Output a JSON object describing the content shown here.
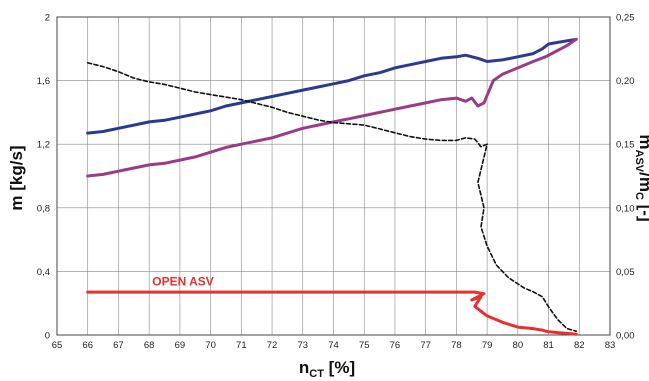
{
  "chart_data": {
    "type": "line",
    "xlabel": "n",
    "xlabel_sub": "CT",
    "xlabel_unit": " [%]",
    "ylabel": "m [kg/s]",
    "y2label": "m",
    "y2label_sub1": "ASV",
    "y2label_mid": "/m",
    "y2label_sub2": "C",
    "y2label_unit": " [-]",
    "xlim": [
      65,
      83
    ],
    "ylim": [
      0,
      2
    ],
    "y2lim": [
      0,
      0.25
    ],
    "x_ticks": [
      "65",
      "66",
      "67",
      "68",
      "69",
      "70",
      "71",
      "72",
      "73",
      "74",
      "75",
      "76",
      "77",
      "78",
      "79",
      "80",
      "81",
      "82",
      "83"
    ],
    "y_ticks": [
      "0",
      "0,4",
      "0,8",
      "1,2",
      "1,6",
      "2"
    ],
    "y_tick_values": [
      0,
      0.4,
      0.8,
      1.2,
      1.6,
      2
    ],
    "y2_ticks": [
      "0,00",
      "0,05",
      "0,10",
      "0,15",
      "0,20",
      "0,25"
    ],
    "y2_tick_values": [
      0,
      0.05,
      0.1,
      0.15,
      0.2,
      0.25
    ],
    "grid": true,
    "annotations": [
      {
        "text": "OPEN ASV",
        "x": 68.1,
        "y": 0.33,
        "color": "#e8312f"
      }
    ],
    "series": [
      {
        "axis": "left",
        "color": "#2b3990",
        "style": "solid",
        "x": [
          66.0,
          66.5,
          67.0,
          67.5,
          68.0,
          68.5,
          69.0,
          69.5,
          70.0,
          70.5,
          71.0,
          71.5,
          72.0,
          72.5,
          73.0,
          73.5,
          74.0,
          74.5,
          75.0,
          75.5,
          76.0,
          76.5,
          77.0,
          77.5,
          78.0,
          78.3,
          78.7,
          79.0,
          79.5,
          80.0,
          80.5,
          80.8,
          81.0,
          81.3,
          81.6,
          81.9
        ],
        "y": [
          1.27,
          1.28,
          1.3,
          1.32,
          1.34,
          1.35,
          1.37,
          1.39,
          1.41,
          1.44,
          1.46,
          1.48,
          1.5,
          1.52,
          1.54,
          1.56,
          1.58,
          1.6,
          1.63,
          1.65,
          1.68,
          1.7,
          1.72,
          1.74,
          1.75,
          1.76,
          1.74,
          1.72,
          1.73,
          1.75,
          1.77,
          1.8,
          1.83,
          1.84,
          1.85,
          1.86
        ]
      },
      {
        "axis": "left",
        "color": "#9a3b86",
        "style": "solid",
        "x": [
          66.0,
          66.5,
          67.0,
          67.5,
          68.0,
          68.5,
          69.0,
          69.5,
          70.0,
          70.5,
          71.0,
          71.5,
          72.0,
          72.5,
          73.0,
          73.5,
          74.0,
          74.5,
          75.0,
          75.5,
          76.0,
          76.5,
          77.0,
          77.5,
          78.0,
          78.3,
          78.5,
          78.7,
          78.9,
          79.2,
          79.5,
          80.0,
          80.5,
          80.9,
          81.2,
          81.6,
          81.9
        ],
        "y": [
          1.0,
          1.01,
          1.03,
          1.05,
          1.07,
          1.08,
          1.1,
          1.12,
          1.15,
          1.18,
          1.2,
          1.22,
          1.24,
          1.27,
          1.3,
          1.32,
          1.34,
          1.36,
          1.38,
          1.4,
          1.42,
          1.44,
          1.46,
          1.48,
          1.49,
          1.47,
          1.49,
          1.44,
          1.46,
          1.6,
          1.64,
          1.68,
          1.72,
          1.75,
          1.78,
          1.82,
          1.86
        ]
      },
      {
        "axis": "right",
        "color": "#111111",
        "style": "dashed",
        "x": [
          66.0,
          66.5,
          67.0,
          67.5,
          68.0,
          68.5,
          69.0,
          69.5,
          70.0,
          70.5,
          71.0,
          71.5,
          72.0,
          72.5,
          73.0,
          73.5,
          74.0,
          74.5,
          75.0,
          75.5,
          76.0,
          76.5,
          77.0,
          77.5,
          78.0,
          78.3,
          78.6,
          78.8,
          79.0,
          78.7,
          78.9,
          78.8,
          79.0,
          79.3,
          79.7,
          80.2,
          80.5,
          80.8,
          81.0,
          81.3,
          81.6,
          81.9
        ],
        "y": [
          0.214,
          0.211,
          0.207,
          0.202,
          0.199,
          0.197,
          0.194,
          0.191,
          0.189,
          0.187,
          0.185,
          0.182,
          0.179,
          0.175,
          0.172,
          0.169,
          0.167,
          0.166,
          0.165,
          0.162,
          0.159,
          0.156,
          0.154,
          0.153,
          0.153,
          0.155,
          0.154,
          0.148,
          0.15,
          0.12,
          0.1,
          0.085,
          0.07,
          0.055,
          0.045,
          0.037,
          0.034,
          0.03,
          0.022,
          0.012,
          0.005,
          0.003
        ]
      },
      {
        "axis": "left",
        "color": "#e8312f",
        "style": "solid",
        "x": [
          66.0,
          67.0,
          68.0,
          69.0,
          70.0,
          71.0,
          72.0,
          73.0,
          74.0,
          75.0,
          76.0,
          77.0,
          78.0,
          78.3,
          78.6,
          78.9,
          78.5,
          78.8,
          78.6,
          79.0,
          79.5,
          80.0,
          80.5,
          80.8,
          81.0,
          81.3,
          81.6,
          81.9
        ],
        "y": [
          0.27,
          0.27,
          0.27,
          0.27,
          0.27,
          0.27,
          0.27,
          0.27,
          0.27,
          0.27,
          0.27,
          0.27,
          0.27,
          0.27,
          0.27,
          0.26,
          0.22,
          0.24,
          0.18,
          0.12,
          0.08,
          0.05,
          0.04,
          0.03,
          0.02,
          0.015,
          0.01,
          0.005
        ]
      }
    ]
  }
}
